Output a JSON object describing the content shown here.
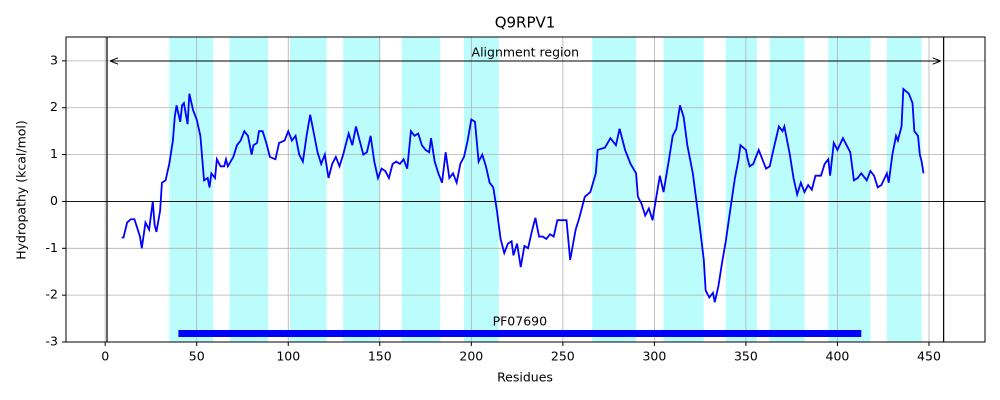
{
  "chart_data": {
    "type": "line",
    "title": "Q9RPV1",
    "xlabel": "Residues",
    "ylabel": "Hydropathy (kcal/mol)",
    "color": "#0000ff",
    "region_color": "#bbfdfd",
    "grid": true,
    "xlim": [
      -21.4,
      480.6
    ],
    "ylim": [
      -3,
      3.51
    ],
    "xticks": [
      0,
      50,
      100,
      150,
      200,
      250,
      300,
      350,
      400,
      450
    ],
    "yticks": [
      -3,
      -2,
      -1,
      0,
      1,
      2,
      3
    ],
    "regions": [
      [
        35,
        59
      ],
      [
        68,
        89
      ],
      [
        101,
        121
      ],
      [
        130,
        150
      ],
      [
        162,
        183
      ],
      [
        196,
        215
      ],
      [
        266,
        290
      ],
      [
        305,
        327
      ],
      [
        339,
        356
      ],
      [
        363,
        382
      ],
      [
        395,
        418
      ],
      [
        427,
        446
      ]
    ],
    "alignment": {
      "start": 1,
      "end": 458,
      "label": "Alignment region"
    },
    "domain": {
      "start": 40,
      "end": 413,
      "label": "PF07690"
    },
    "x": [
      9,
      10,
      12,
      14,
      16,
      19,
      20,
      22,
      24,
      26,
      27,
      28,
      30,
      31,
      33,
      35,
      37,
      38,
      39,
      41,
      42,
      43,
      45,
      46,
      48,
      50,
      52,
      54,
      56,
      57,
      58,
      60,
      61,
      63,
      65,
      66,
      67,
      70,
      72,
      74,
      76,
      78,
      80,
      81,
      83,
      84,
      86,
      88,
      90,
      93,
      95,
      98,
      100,
      102,
      104,
      106,
      108,
      110,
      112,
      114,
      116,
      118,
      120,
      122,
      124,
      126,
      128,
      130,
      133,
      135,
      137,
      139,
      141,
      143,
      145,
      147,
      149,
      151,
      153,
      155,
      157,
      159,
      161,
      163,
      165,
      167,
      169,
      171,
      173,
      175,
      177,
      178,
      180,
      182,
      184,
      186,
      188,
      190,
      192,
      194,
      196,
      198,
      200,
      202,
      204,
      206,
      208,
      210,
      212,
      214,
      216,
      218,
      220,
      222,
      223,
      225,
      227,
      229,
      231,
      233,
      235,
      237,
      239,
      241,
      243,
      245,
      247,
      249,
      252,
      254,
      257,
      259,
      262,
      265,
      268,
      269,
      273,
      276,
      279,
      281,
      284,
      287,
      290,
      291,
      293,
      295,
      297,
      299,
      300,
      303,
      305,
      308,
      310,
      312,
      314,
      316,
      318,
      321,
      323,
      325,
      327,
      328,
      330,
      332,
      333,
      335,
      337,
      339,
      341,
      344,
      346,
      347,
      350,
      351,
      352,
      354,
      357,
      359,
      361,
      363,
      365,
      368,
      370,
      371,
      374,
      376,
      378,
      380,
      382,
      384,
      386,
      388,
      391,
      393,
      395,
      396,
      398,
      400,
      403,
      405,
      407,
      409,
      411,
      413,
      416,
      418,
      420,
      422,
      424,
      427,
      428,
      430,
      432,
      433,
      435,
      436,
      439,
      441,
      442,
      444,
      445,
      446,
      447
    ],
    "values": [
      -0.77,
      -0.77,
      -0.45,
      -0.38,
      -0.38,
      -0.75,
      -1.0,
      -0.45,
      -0.6,
      0.0,
      -0.5,
      -0.65,
      -0.2,
      0.4,
      0.45,
      0.8,
      1.3,
      1.8,
      2.05,
      1.7,
      2.05,
      2.1,
      1.65,
      2.3,
      1.95,
      1.75,
      1.4,
      0.45,
      0.5,
      0.3,
      0.6,
      0.5,
      0.9,
      0.75,
      0.75,
      0.9,
      0.75,
      0.95,
      1.2,
      1.3,
      1.5,
      1.4,
      1.0,
      1.2,
      1.25,
      1.5,
      1.5,
      1.25,
      0.95,
      0.9,
      1.25,
      1.3,
      1.5,
      1.3,
      1.4,
      1.0,
      0.85,
      1.4,
      1.85,
      1.45,
      1.05,
      0.8,
      1.0,
      0.5,
      0.8,
      0.95,
      0.75,
      1.0,
      1.45,
      1.2,
      1.6,
      1.3,
      1.0,
      1.05,
      1.4,
      0.85,
      0.5,
      0.7,
      0.65,
      0.5,
      0.8,
      0.85,
      0.8,
      0.9,
      0.7,
      1.5,
      1.4,
      1.45,
      1.2,
      1.1,
      1.05,
      1.35,
      0.85,
      0.6,
      0.4,
      1.05,
      0.5,
      0.6,
      0.4,
      0.8,
      0.95,
      1.3,
      1.75,
      1.7,
      0.85,
      1.0,
      0.75,
      0.4,
      0.3,
      -0.2,
      -0.8,
      -1.1,
      -0.9,
      -0.85,
      -1.15,
      -0.9,
      -1.4,
      -0.95,
      -1.0,
      -0.65,
      -0.35,
      -0.75,
      -0.75,
      -0.8,
      -0.7,
      -0.75,
      -0.4,
      -0.4,
      -0.4,
      -1.25,
      -0.6,
      -0.35,
      0.1,
      0.2,
      0.6,
      1.1,
      1.15,
      1.35,
      1.2,
      1.55,
      1.1,
      0.8,
      0.6,
      0.1,
      -0.05,
      -0.3,
      -0.15,
      -0.4,
      -0.15,
      0.55,
      0.2,
      0.9,
      1.4,
      1.55,
      2.05,
      1.8,
      1.2,
      0.6,
      0.0,
      -0.6,
      -1.25,
      -1.9,
      -2.05,
      -1.95,
      -2.15,
      -1.8,
      -1.3,
      -0.85,
      -0.3,
      0.5,
      0.9,
      1.2,
      1.1,
      0.9,
      0.75,
      0.8,
      1.1,
      0.9,
      0.7,
      0.75,
      1.1,
      1.6,
      1.5,
      1.6,
      1.0,
      0.5,
      0.15,
      0.4,
      0.2,
      0.35,
      0.25,
      0.55,
      0.55,
      0.8,
      0.9,
      0.55,
      1.25,
      1.1,
      1.35,
      1.2,
      1.05,
      0.45,
      0.5,
      0.6,
      0.45,
      0.65,
      0.55,
      0.3,
      0.35,
      0.6,
      0.4,
      1.0,
      1.4,
      1.3,
      1.6,
      2.4,
      2.3,
      2.1,
      1.5,
      1.4,
      1.0,
      0.85,
      0.6
    ]
  }
}
